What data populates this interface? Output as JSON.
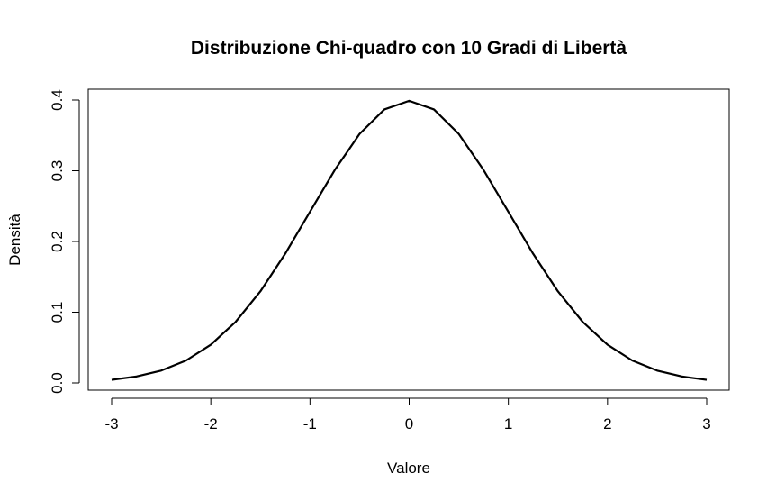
{
  "chart_data": {
    "type": "line",
    "title": "Distribuzione Chi-quadro con 10 Gradi di Libertà",
    "xlabel": "Valore",
    "ylabel": "Densità",
    "xlim": [
      -3,
      3
    ],
    "ylim": [
      0,
      0.4
    ],
    "x_ticks": [
      "-3",
      "-2",
      "-1",
      "0",
      "1",
      "2",
      "3"
    ],
    "y_ticks": [
      "0.0",
      "0.1",
      "0.2",
      "0.3",
      "0.4"
    ],
    "grid": false,
    "legend": "none",
    "line_color": "#000000",
    "series": [
      {
        "x": [
          -3,
          -2.75,
          -2.5,
          -2.25,
          -2,
          -1.75,
          -1.5,
          -1.25,
          -1,
          -0.75,
          -0.5,
          -0.25,
          0,
          0.25,
          0.5,
          0.75,
          1,
          1.25,
          1.5,
          1.75,
          2,
          2.25,
          2.5,
          2.75,
          3
        ],
        "y": [
          0.0044,
          0.0091,
          0.0175,
          0.0317,
          0.054,
          0.0863,
          0.1295,
          0.1826,
          0.242,
          0.3011,
          0.3521,
          0.3867,
          0.3989,
          0.3867,
          0.3521,
          0.3011,
          0.242,
          0.1826,
          0.1295,
          0.0863,
          0.054,
          0.0317,
          0.0175,
          0.0091,
          0.0044
        ]
      }
    ]
  }
}
